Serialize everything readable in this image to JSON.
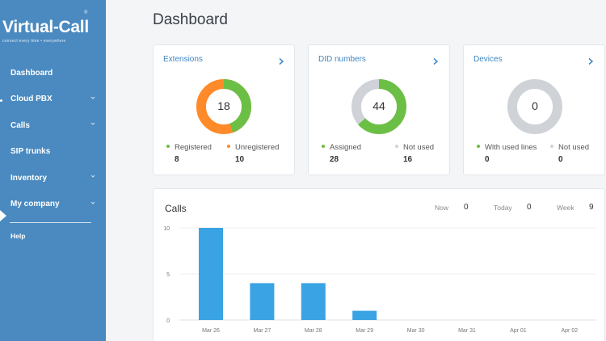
{
  "brand": {
    "name": "Virtual-Call",
    "reg": "®",
    "tagline": "connect every time • everywhere"
  },
  "sidebar": {
    "items": [
      {
        "label": "Dashboard",
        "has_chevron": false
      },
      {
        "label": "Cloud PBX",
        "has_chevron": true
      },
      {
        "label": "Calls",
        "has_chevron": true
      },
      {
        "label": "SIP trunks",
        "has_chevron": false
      },
      {
        "label": "Inventory",
        "has_chevron": true
      },
      {
        "label": "My company",
        "has_chevron": true
      }
    ],
    "help": "Help"
  },
  "page": {
    "title": "Dashboard"
  },
  "cards": {
    "extensions": {
      "title": "Extensions",
      "total": "18",
      "legend": [
        {
          "label": "Registered",
          "value": "8",
          "color": "#6cbf45"
        },
        {
          "label": "Unregistered",
          "value": "10",
          "color": "#ff8a2a"
        }
      ]
    },
    "did": {
      "title": "DID numbers",
      "total": "44",
      "legend": [
        {
          "label": "Assigned",
          "value": "28",
          "color": "#6cbf45"
        },
        {
          "label": "Not used",
          "value": "16",
          "color": "#cfd3d8"
        }
      ]
    },
    "devices": {
      "title": "Devices",
      "total": "0",
      "legend": [
        {
          "label": "With used lines",
          "value": "0",
          "color": "#6cbf45"
        },
        {
          "label": "Not used",
          "value": "0",
          "color": "#cfd3d8"
        }
      ]
    }
  },
  "calls": {
    "title": "Calls",
    "stats": [
      {
        "label": "Now",
        "value": "0"
      },
      {
        "label": "Today",
        "value": "0"
      },
      {
        "label": "Week",
        "value": "9"
      }
    ]
  },
  "colors": {
    "sidebar": "#4a8ac0",
    "accent": "#3f86c4",
    "bar": "#3aa3e3",
    "green": "#6cbf45",
    "orange": "#ff8a2a",
    "grey": "#cfd3d8"
  },
  "chart_data": {
    "type": "bar",
    "title": "Calls",
    "categories": [
      "Mar 26",
      "Mar 27",
      "Mar 28",
      "Mar 29",
      "Mar 30",
      "Mar 31",
      "Apr 01",
      "Apr 02"
    ],
    "values": [
      10,
      4,
      4,
      1,
      0,
      0,
      0,
      0
    ],
    "yticks": [
      "10",
      "5",
      "0"
    ],
    "ylim": [
      0,
      10
    ],
    "grid": true
  }
}
